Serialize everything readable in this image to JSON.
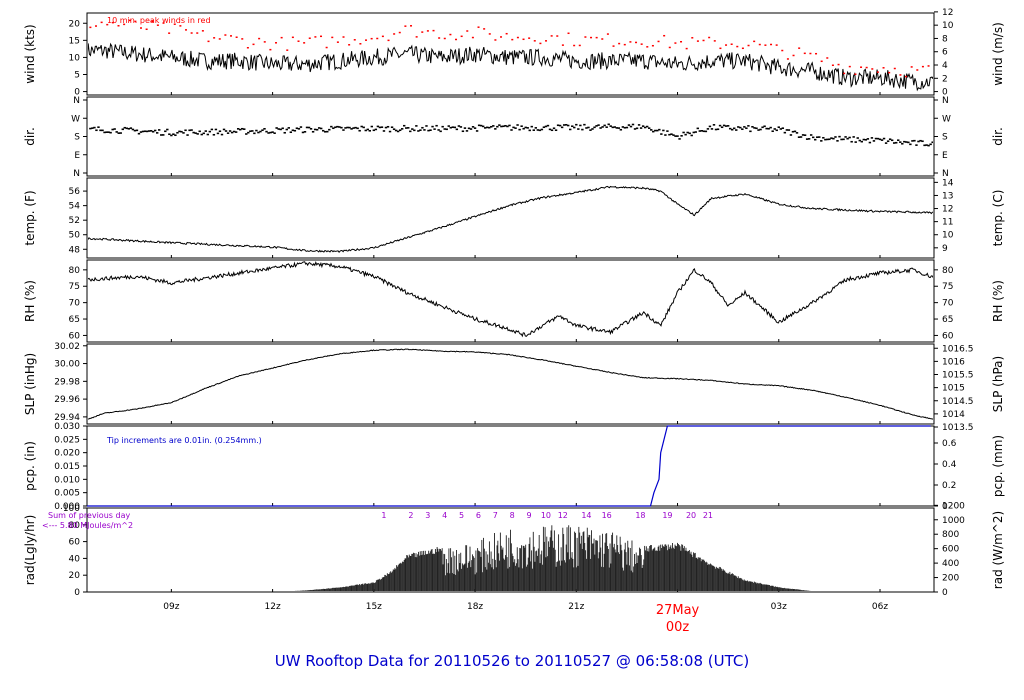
{
  "footer_title": "UW Rooftop Data for 20110526  to  20110527 @ 06:58:08  (UTC)",
  "colors": {
    "text": "#000000",
    "peak": "#ff0000",
    "precip": "#0000cc",
    "rad_note": "#9900cc",
    "date_label": "#ff0000",
    "title": "#0000cc"
  },
  "time_axis": {
    "ticks": [
      "09z",
      "12z",
      "15z",
      "18z",
      "21z",
      "00z",
      "03z",
      "06z"
    ],
    "date_label": "27May",
    "date_label_hour": "00z"
  },
  "chart_data": [
    {
      "type": "line",
      "id": "wind",
      "ylabel_left": "wind (kts)",
      "ylabel_right": "wind (m/s)",
      "yticks_left": [
        "0",
        "5",
        "10",
        "15",
        "20"
      ],
      "yticks_right": [
        "0",
        "2",
        "4",
        "6",
        "8",
        "10",
        "12"
      ],
      "ylim": [
        -1,
        23
      ],
      "annotation": "10 min. peak winds in red",
      "series": [
        {
          "name": "wind speed",
          "x": [
            7,
            8,
            9,
            10,
            11,
            12,
            13,
            14,
            15,
            16,
            17,
            18,
            19,
            20,
            21,
            22,
            23,
            24,
            25,
            26,
            27,
            28,
            29,
            30,
            31
          ],
          "values": [
            12,
            11,
            10,
            9,
            9,
            8,
            8,
            9,
            10,
            11,
            10,
            11,
            10,
            10,
            9,
            9,
            9,
            8,
            9,
            9,
            7,
            6,
            4,
            4,
            3
          ]
        },
        {
          "name": "10 min. peak winds",
          "x": [
            7,
            8,
            9,
            10,
            11,
            12,
            13,
            14,
            15,
            16,
            17,
            18,
            19,
            20,
            21,
            22,
            23,
            24,
            25,
            26,
            27,
            28,
            29,
            30,
            31
          ],
          "values": [
            20,
            19,
            18,
            16,
            15,
            14,
            14,
            15,
            16,
            18,
            17,
            17,
            16,
            16,
            15,
            15,
            15,
            14,
            14,
            14,
            12,
            10,
            7,
            7,
            6
          ]
        }
      ]
    },
    {
      "type": "scatter",
      "id": "dir",
      "ylabel_left": "dir.",
      "ylabel_right": "dir.",
      "yticks_left": [
        "N",
        "E",
        "S",
        "W",
        "N"
      ],
      "yticks_right": [
        "N",
        "E",
        "S",
        "W",
        "N"
      ],
      "ylim": [
        -20,
        380
      ],
      "series": [
        {
          "name": "wind direction",
          "x": [
            7,
            9,
            11,
            13,
            15,
            17,
            19,
            21,
            23,
            24,
            25,
            27,
            28,
            29,
            30,
            31
          ],
          "values": [
            215,
            200,
            205,
            215,
            220,
            220,
            225,
            225,
            230,
            180,
            225,
            215,
            175,
            165,
            160,
            145
          ]
        }
      ]
    },
    {
      "type": "line",
      "id": "temp",
      "ylabel_left": "temp. (F)",
      "ylabel_right": "temp. (C)",
      "yticks_left": [
        "48",
        "50",
        "52",
        "54",
        "56"
      ],
      "yticks_right": [
        "9",
        "10",
        "11",
        "12",
        "13",
        "14"
      ],
      "ylim": [
        46.8,
        57.8
      ],
      "series": [
        {
          "name": "temperature",
          "x": [
            6.5,
            9,
            12,
            13,
            14,
            15,
            16,
            17,
            18,
            19,
            20,
            21,
            22,
            23,
            23.5,
            24,
            24.5,
            25,
            26,
            27,
            28,
            29,
            30,
            31,
            31.5
          ],
          "values": [
            49.5,
            48.9,
            48.3,
            47.8,
            47.7,
            48.2,
            49.6,
            51.0,
            52.5,
            54.0,
            55.1,
            55.8,
            56.6,
            56.4,
            56.0,
            54.2,
            52.7,
            55.0,
            55.6,
            54.2,
            53.6,
            53.4,
            53.2,
            53.1,
            53.0
          ]
        }
      ]
    },
    {
      "type": "line",
      "id": "rh",
      "ylabel_left": "RH (%)",
      "ylabel_right": "RH (%)",
      "yticks_left": [
        "60",
        "65",
        "70",
        "75",
        "80"
      ],
      "yticks_right": [
        "60",
        "65",
        "70",
        "75",
        "80"
      ],
      "ylim": [
        58,
        83
      ],
      "series": [
        {
          "name": "relative humidity",
          "x": [
            6.5,
            8,
            9,
            11,
            13,
            14,
            15,
            16,
            17,
            18,
            19,
            19.5,
            20,
            20.5,
            21,
            22,
            22.5,
            23,
            23.5,
            24,
            24.5,
            25,
            25.5,
            26,
            27,
            28,
            29,
            30,
            31,
            31.5
          ],
          "values": [
            77,
            78,
            76,
            79,
            82,
            81,
            78,
            73,
            69,
            65,
            62,
            60,
            63,
            66,
            63,
            61,
            64,
            67,
            63,
            73,
            80,
            76,
            69,
            73,
            64,
            70,
            77,
            79,
            80,
            78
          ]
        }
      ]
    },
    {
      "type": "line",
      "id": "slp",
      "ylabel_left": "SLP (inHg)",
      "ylabel_right": "SLP (hPa)",
      "yticks_left": [
        "29.94",
        "29.96",
        "29.98",
        "30.00",
        "30.02"
      ],
      "yticks_right": [
        "1013.5",
        "1014",
        "1014.5",
        "1015",
        "1015.5",
        "1016",
        "1016.5"
      ],
      "ylim": [
        29.932,
        30.022
      ],
      "series": [
        {
          "name": "sea level pressure",
          "x": [
            6.5,
            7,
            8,
            9,
            10,
            11,
            12,
            13,
            14,
            15,
            16,
            17,
            18,
            19,
            20,
            21,
            22,
            23,
            24,
            25,
            26,
            27,
            28,
            29,
            30,
            31,
            31.5
          ],
          "values": [
            29.937,
            29.944,
            29.949,
            29.956,
            29.972,
            29.986,
            29.995,
            30.004,
            30.011,
            30.015,
            30.016,
            30.014,
            30.013,
            30.01,
            30.004,
            29.997,
            29.99,
            29.984,
            29.983,
            29.981,
            29.977,
            29.975,
            29.97,
            29.962,
            29.953,
            29.942,
            29.938
          ]
        }
      ]
    },
    {
      "type": "line",
      "id": "pcp",
      "ylabel_left": "pcp. (in)",
      "ylabel_right": "pcp. (mm)",
      "yticks_left": [
        "0.000",
        "0.005",
        "0.010",
        "0.015",
        "0.020",
        "0.025",
        "0.030"
      ],
      "yticks_right": [
        "0",
        "0.2",
        "0.4",
        "0.6"
      ],
      "ylim": [
        0,
        0.03
      ],
      "annotation": "Tip increments are 0.01in. (0.254mm.)",
      "series": [
        {
          "name": "accumulated precipitation",
          "x": [
            6.5,
            23.2,
            23.3,
            23.45,
            23.5,
            23.7,
            31.5
          ],
          "values": [
            0,
            0,
            0.005,
            0.01,
            0.02,
            0.03,
            0.03
          ]
        }
      ]
    },
    {
      "type": "area",
      "id": "rad",
      "ylabel_left": "rad(Lgly/hr)",
      "ylabel_right": "rad (W/m^2)",
      "yticks_left": [
        "0",
        "20",
        "40",
        "60",
        "80",
        "100"
      ],
      "yticks_right": [
        "0",
        "200",
        "400",
        "600",
        "800",
        "1000",
        "1200"
      ],
      "ylim": [
        0,
        100
      ],
      "note_line1": "Sum of previous day",
      "note_line2": "<--- 5.80 MJoules/m^2",
      "hour_marks": [
        "1",
        "2",
        "3",
        "4",
        "5",
        "6",
        "7",
        "8",
        "9",
        "10",
        "12",
        "14",
        "16",
        "18",
        "19",
        "20",
        "21"
      ],
      "series": [
        {
          "name": "solar radiation",
          "x": [
            12,
            13,
            14,
            15,
            15.5,
            16,
            17,
            18,
            19,
            20,
            21,
            22,
            23,
            24,
            25,
            26,
            27,
            28,
            29
          ],
          "values": [
            0,
            2,
            6,
            12,
            25,
            45,
            55,
            60,
            78,
            80,
            82,
            75,
            55,
            60,
            35,
            15,
            6,
            1,
            0
          ]
        }
      ]
    }
  ]
}
